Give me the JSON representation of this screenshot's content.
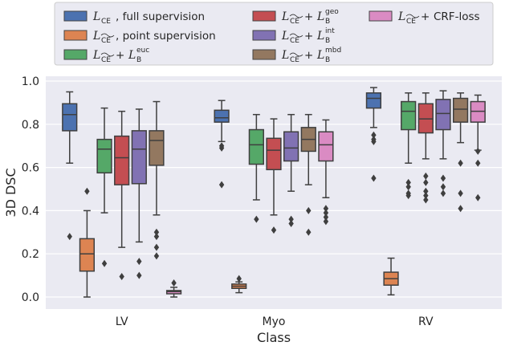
{
  "chart_data": {
    "type": "boxplot",
    "title": "",
    "xlabel": "Class",
    "ylabel": "3D DSC",
    "ylim": [
      -0.03,
      1.02
    ],
    "yticks": [
      "0.0",
      "0.2",
      "0.4",
      "0.6",
      "0.8",
      "1.0"
    ],
    "grid": true,
    "legend_position": "top",
    "categories": [
      "LV",
      "Myo",
      "RV"
    ],
    "series": [
      {
        "name": "full supervision",
        "legend": {
          "script": "L",
          "sub": "CE",
          "plus": "",
          "bsup": "",
          "text": ", full supervision"
        },
        "color": "#4c72b0",
        "boxes": [
          {
            "min": 0.62,
            "q1": 0.77,
            "median": 0.845,
            "q3": 0.895,
            "max": 0.95,
            "outliers": [
              0.28
            ]
          },
          {
            "min": 0.72,
            "q1": 0.81,
            "median": 0.83,
            "q3": 0.865,
            "max": 0.91,
            "outliers": [
              0.69,
              0.7,
              0.52
            ]
          },
          {
            "min": 0.785,
            "q1": 0.875,
            "median": 0.92,
            "q3": 0.945,
            "max": 0.97,
            "outliers": [
              0.75,
              0.73,
              0.72,
              0.55
            ]
          }
        ]
      },
      {
        "name": "point supervision",
        "legend": {
          "script": "L",
          "sub": "CE~",
          "plus": "",
          "bsup": "",
          "text": ", point supervision"
        },
        "color": "#dd8452",
        "boxes": [
          {
            "min": 0.0,
            "q1": 0.12,
            "median": 0.2,
            "q3": 0.27,
            "max": 0.4,
            "outliers": [
              0.49
            ]
          },
          {
            "min": 0.02,
            "q1": 0.04,
            "median": 0.05,
            "q3": 0.06,
            "max": 0.07,
            "outliers": [
              0.085
            ]
          },
          {
            "min": 0.01,
            "q1": 0.055,
            "median": 0.085,
            "q3": 0.115,
            "max": 0.18,
            "outliers": []
          }
        ]
      },
      {
        "name": "+ euc",
        "legend": {
          "script": "L",
          "sub": "CE~",
          "plus": " + ",
          "bsup": "euc",
          "text": ""
        },
        "color": "#55a868",
        "boxes": [
          {
            "min": 0.39,
            "q1": 0.575,
            "median": 0.685,
            "q3": 0.73,
            "max": 0.875,
            "outliers": [
              0.155
            ]
          },
          {
            "min": 0.45,
            "q1": 0.615,
            "median": 0.705,
            "q3": 0.775,
            "max": 0.845,
            "outliers": [
              0.36
            ]
          },
          {
            "min": 0.62,
            "q1": 0.775,
            "median": 0.86,
            "q3": 0.905,
            "max": 0.945,
            "outliers": [
              0.53,
              0.51,
              0.48,
              0.47
            ]
          }
        ]
      },
      {
        "name": "+ geo",
        "legend": {
          "script": "L",
          "sub": "CE~",
          "plus": " + ",
          "bsup": "geo",
          "text": ""
        },
        "color": "#c44e52",
        "boxes": [
          {
            "min": 0.23,
            "q1": 0.52,
            "median": 0.645,
            "q3": 0.745,
            "max": 0.86,
            "outliers": [
              0.095
            ]
          },
          {
            "min": 0.38,
            "q1": 0.59,
            "median": 0.68,
            "q3": 0.735,
            "max": 0.825,
            "outliers": [
              0.31
            ]
          },
          {
            "min": 0.64,
            "q1": 0.76,
            "median": 0.825,
            "q3": 0.895,
            "max": 0.945,
            "outliers": [
              0.56,
              0.53,
              0.49,
              0.47,
              0.45
            ]
          }
        ]
      },
      {
        "name": "+ int",
        "legend": {
          "script": "L",
          "sub": "CE~",
          "plus": " + ",
          "bsup": "int",
          "text": ""
        },
        "color": "#8172b3",
        "boxes": [
          {
            "min": 0.255,
            "q1": 0.525,
            "median": 0.685,
            "q3": 0.77,
            "max": 0.87,
            "outliers": [
              0.165,
              0.1
            ]
          },
          {
            "min": 0.49,
            "q1": 0.63,
            "median": 0.69,
            "q3": 0.765,
            "max": 0.845,
            "outliers": [
              0.36,
              0.34
            ]
          },
          {
            "min": 0.64,
            "q1": 0.775,
            "median": 0.85,
            "q3": 0.915,
            "max": 0.955,
            "outliers": [
              0.55,
              0.51,
              0.48
            ]
          }
        ]
      },
      {
        "name": "+ mbd",
        "legend": {
          "script": "L",
          "sub": "CE~",
          "plus": " + ",
          "bsup": "mbd",
          "text": ""
        },
        "color": "#937860",
        "boxes": [
          {
            "min": 0.38,
            "q1": 0.61,
            "median": 0.725,
            "q3": 0.77,
            "max": 0.905,
            "outliers": [
              0.3,
              0.28,
              0.23,
              0.19
            ]
          },
          {
            "min": 0.52,
            "q1": 0.675,
            "median": 0.73,
            "q3": 0.785,
            "max": 0.845,
            "outliers": [
              0.4,
              0.3
            ]
          },
          {
            "min": 0.715,
            "q1": 0.81,
            "median": 0.87,
            "q3": 0.92,
            "max": 0.945,
            "outliers": [
              0.62,
              0.48,
              0.41
            ]
          }
        ]
      },
      {
        "name": "+ CRF-loss",
        "legend": {
          "script": "L",
          "sub": "CE~",
          "plus": " + ",
          "bsup": "",
          "text": "CRF-loss"
        },
        "color": "#da8bc3",
        "boxes": [
          {
            "min": 0.0,
            "q1": 0.015,
            "median": 0.025,
            "q3": 0.03,
            "max": 0.045,
            "outliers": [
              0.065
            ]
          },
          {
            "min": 0.46,
            "q1": 0.63,
            "median": 0.705,
            "q3": 0.765,
            "max": 0.82,
            "outliers": [
              0.41,
              0.39,
              0.37,
              0.35
            ]
          },
          {
            "min": 0.68,
            "q1": 0.81,
            "median": 0.86,
            "q3": 0.905,
            "max": 0.935,
            "outliers": [
              0.675,
              0.62,
              0.46
            ]
          }
        ]
      }
    ]
  }
}
